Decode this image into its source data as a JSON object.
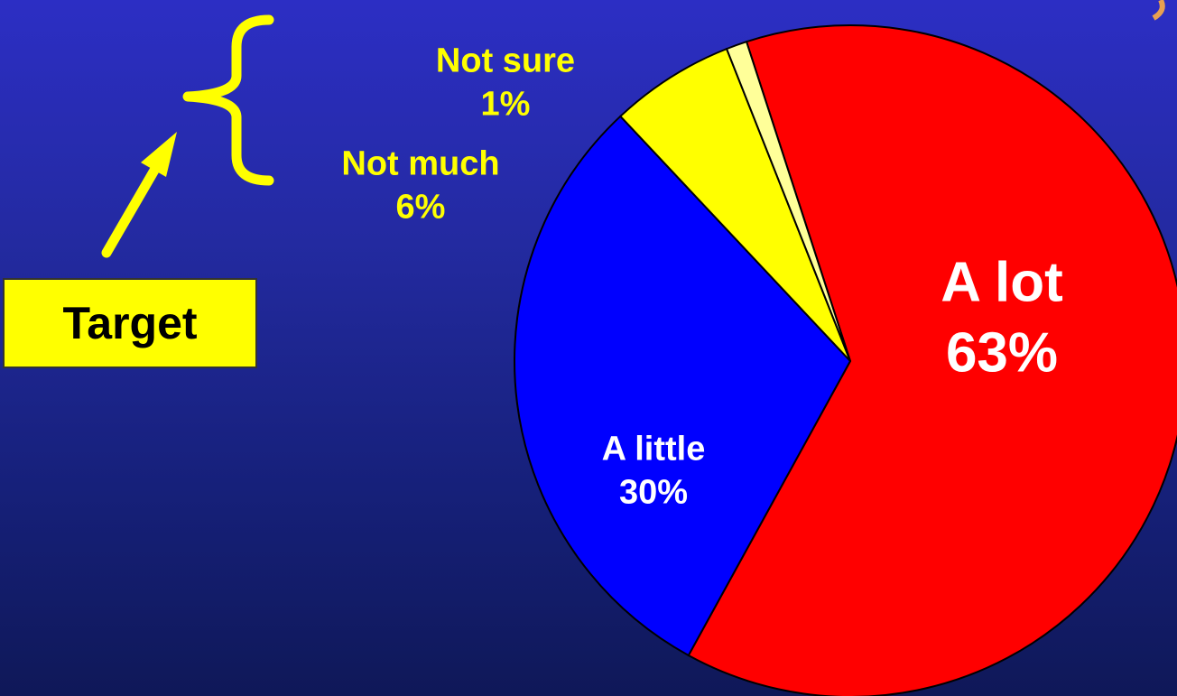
{
  "chart_data": {
    "type": "pie",
    "title": "",
    "slices": [
      {
        "label": "A lot",
        "value": 63,
        "display": "63%",
        "color": "#ff0000",
        "label_color": "#ffffff"
      },
      {
        "label": "A little",
        "value": 30,
        "display": "30%",
        "color": "#0000ff",
        "label_color": "#ffffff"
      },
      {
        "label": "Not much",
        "value": 6,
        "display": "6%",
        "color": "#ffff00",
        "label_color": "#ffff00"
      },
      {
        "label": "Not sure",
        "value": 1,
        "display": "1%",
        "color": "#ffff99",
        "label_color": "#ffff00"
      }
    ]
  },
  "annotation": {
    "target_label": "Target",
    "highlight_color": "#ffff00",
    "brace_icon": "curly-brace-icon",
    "arrow_icon": "arrow-up-right-icon"
  }
}
